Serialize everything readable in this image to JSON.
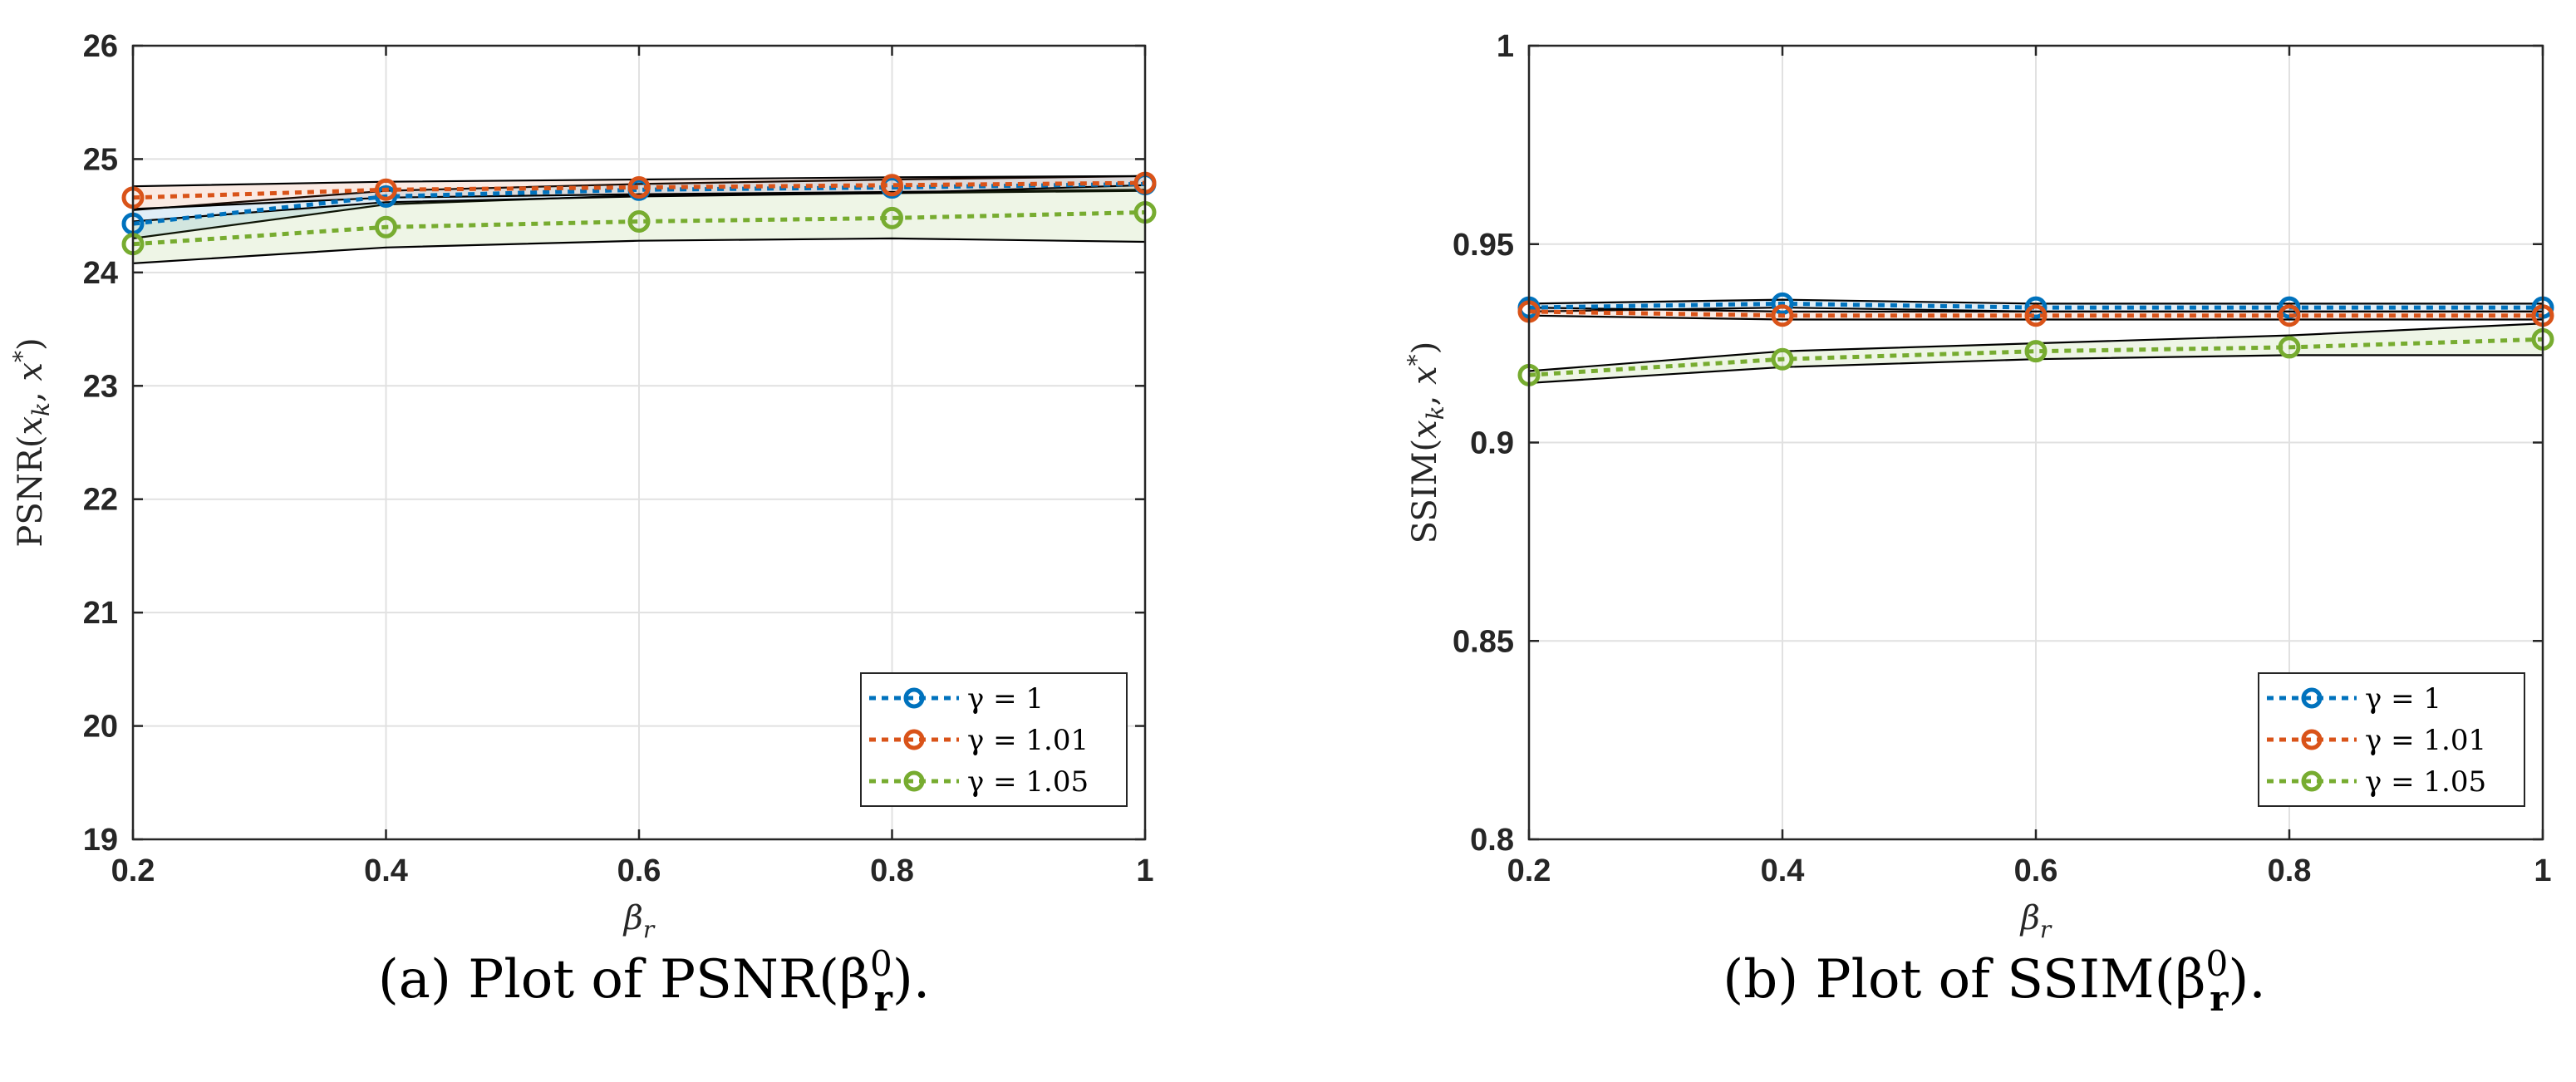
{
  "chart_data": [
    {
      "type": "line",
      "caption": "(a) Plot of PSNR(βr0).",
      "xlabel": "βr",
      "ylabel": "PSNR(xk, x*)",
      "x": [
        0.2,
        0.4,
        0.6,
        0.8,
        1.0
      ],
      "xlim": [
        0.2,
        1.0
      ],
      "ylim": [
        19,
        26
      ],
      "xticks": [
        "0.2",
        "0.4",
        "0.6",
        "0.8",
        "1"
      ],
      "yticks": [
        "19",
        "20",
        "21",
        "22",
        "23",
        "24",
        "25",
        "26"
      ],
      "legend_position": "bottom-right",
      "series": [
        {
          "name": "γ = 1",
          "color": "#0072BD",
          "values": [
            24.43,
            24.67,
            24.73,
            24.75,
            24.78
          ],
          "band_upper": [
            24.55,
            24.72,
            24.78,
            24.82,
            24.85
          ],
          "band_lower": [
            24.3,
            24.6,
            24.68,
            24.7,
            24.72
          ]
        },
        {
          "name": "γ = 1.01",
          "color": "#D95319",
          "values": [
            24.66,
            24.73,
            24.75,
            24.77,
            24.79
          ],
          "band_upper": [
            24.76,
            24.8,
            24.82,
            24.84,
            24.85
          ],
          "band_lower": [
            24.56,
            24.66,
            24.69,
            24.71,
            24.73
          ]
        },
        {
          "name": "γ = 1.05",
          "color": "#77AC30",
          "values": [
            24.25,
            24.4,
            24.45,
            24.48,
            24.53
          ],
          "band_upper": [
            24.45,
            24.62,
            24.67,
            24.7,
            24.77
          ],
          "band_lower": [
            24.08,
            24.22,
            24.28,
            24.3,
            24.27
          ]
        }
      ]
    },
    {
      "type": "line",
      "caption": "(b) Plot of SSIM(βr0).",
      "xlabel": "βr",
      "ylabel": "SSIM(xk, x*)",
      "x": [
        0.2,
        0.4,
        0.6,
        0.8,
        1.0
      ],
      "xlim": [
        0.2,
        1.0
      ],
      "ylim": [
        0.8,
        1.0
      ],
      "xticks": [
        "0.2",
        "0.4",
        "0.6",
        "0.8",
        "1"
      ],
      "yticks": [
        "0.8",
        "0.85",
        "0.9",
        "0.95",
        "1"
      ],
      "legend_position": "bottom-right",
      "series": [
        {
          "name": "γ = 1",
          "color": "#0072BD",
          "values": [
            0.934,
            0.935,
            0.934,
            0.934,
            0.934
          ],
          "band_upper": [
            0.935,
            0.936,
            0.935,
            0.935,
            0.935
          ],
          "band_lower": [
            0.933,
            0.934,
            0.933,
            0.933,
            0.933
          ]
        },
        {
          "name": "γ = 1.01",
          "color": "#D95319",
          "values": [
            0.933,
            0.932,
            0.932,
            0.932,
            0.932
          ],
          "band_upper": [
            0.934,
            0.933,
            0.933,
            0.933,
            0.933
          ],
          "band_lower": [
            0.932,
            0.931,
            0.931,
            0.931,
            0.931
          ]
        },
        {
          "name": "γ = 1.05",
          "color": "#77AC30",
          "values": [
            0.917,
            0.921,
            0.923,
            0.924,
            0.926
          ],
          "band_upper": [
            0.918,
            0.923,
            0.925,
            0.927,
            0.93
          ],
          "band_lower": [
            0.915,
            0.919,
            0.921,
            0.922,
            0.922
          ]
        }
      ]
    }
  ]
}
